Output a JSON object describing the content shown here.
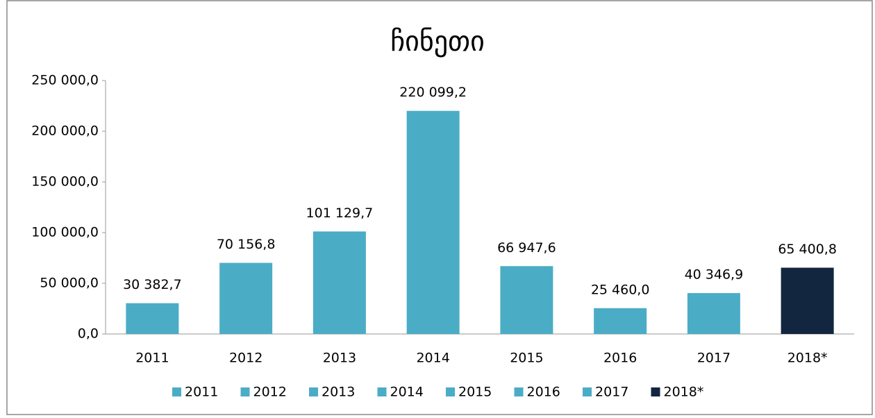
{
  "chart_data": {
    "type": "bar",
    "title": "ჩინეთი",
    "categories": [
      "2011",
      "2012",
      "2013",
      "2014",
      "2015",
      "2016",
      "2017",
      "2018*"
    ],
    "values": [
      30382.7,
      70156.8,
      101129.7,
      220099.2,
      66947.6,
      25460.0,
      40346.9,
      65400.8
    ],
    "value_labels": [
      "30 382,7",
      "70 156,8",
      "101 129,7",
      "220 099,2",
      "66 947,6",
      "25 460,0",
      "40 346,9",
      "65 400,8"
    ],
    "colors": [
      "#4bacc6",
      "#4bacc6",
      "#4bacc6",
      "#4bacc6",
      "#4bacc6",
      "#4bacc6",
      "#4bacc6",
      "#12263f"
    ],
    "ylim": [
      0,
      250000
    ],
    "yticks": [
      {
        "value": 0,
        "label": "0,0"
      },
      {
        "value": 50000,
        "label": "50 000,0"
      },
      {
        "value": 100000,
        "label": "100 000,0"
      },
      {
        "value": 150000,
        "label": "150 000,0"
      },
      {
        "value": 200000,
        "label": "200 000,0"
      },
      {
        "value": 250000,
        "label": "250 000,0"
      }
    ],
    "grid": false,
    "legend": "bottom"
  }
}
